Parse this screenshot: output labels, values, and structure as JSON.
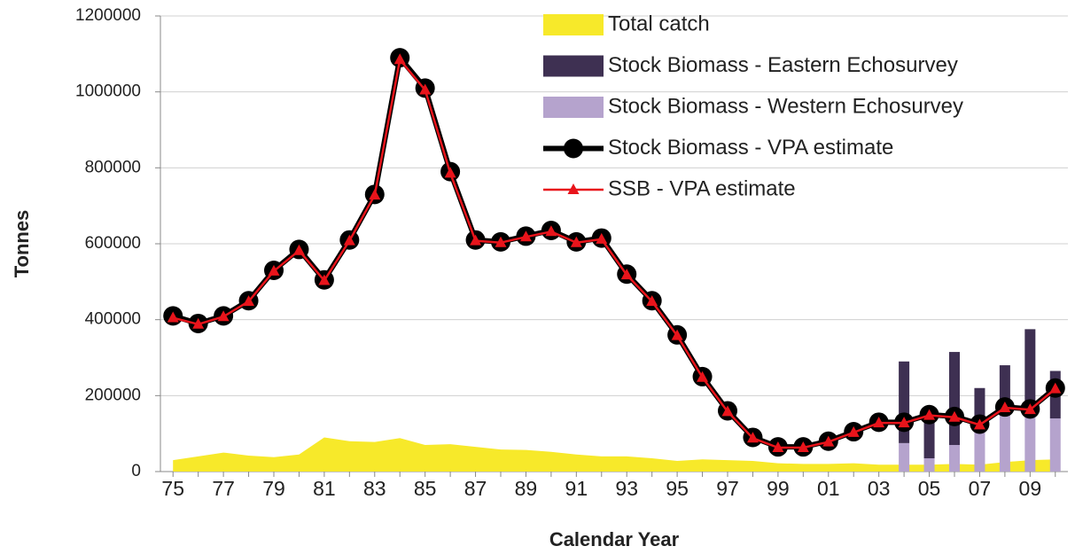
{
  "chart_data": {
    "type": "combo",
    "y_label": "Tonnes",
    "x_label": "Calendar Year",
    "categories": [
      "75",
      null,
      "77",
      null,
      "79",
      null,
      "81",
      null,
      "83",
      null,
      "85",
      null,
      "87",
      null,
      "89",
      null,
      "91",
      null,
      "93",
      null,
      "95",
      null,
      "97",
      null,
      "99",
      null,
      "01",
      null,
      "03",
      null,
      "05",
      null,
      "07",
      null,
      "09",
      null
    ],
    "ylim": [
      0,
      1200000
    ],
    "yticks": [
      0,
      200000,
      400000,
      600000,
      800000,
      1000000,
      1200000
    ],
    "grid": true,
    "legend": "top-right",
    "series": [
      {
        "name": "Total catch",
        "kind": "area",
        "color": "#f7e92a",
        "values": [
          30000,
          40000,
          50000,
          42000,
          38000,
          45000,
          90000,
          80000,
          78000,
          88000,
          70000,
          72000,
          65000,
          58000,
          57000,
          52000,
          45000,
          40000,
          40000,
          35000,
          28000,
          32000,
          30000,
          28000,
          22000,
          20000,
          20000,
          22000,
          18000,
          18000,
          18000,
          20000,
          18000,
          25000,
          30000,
          32000
        ]
      },
      {
        "name": "Stock Biomass - Eastern Echosurvey",
        "kind": "bar",
        "color": "#3e3052",
        "values": [
          null,
          null,
          null,
          null,
          null,
          null,
          null,
          null,
          null,
          null,
          null,
          null,
          null,
          null,
          null,
          null,
          null,
          null,
          null,
          null,
          null,
          null,
          null,
          null,
          null,
          null,
          null,
          null,
          null,
          215000,
          105000,
          245000,
          110000,
          130000,
          225000,
          125000
        ]
      },
      {
        "name": "Stock Biomass - Western Echosurvey",
        "kind": "bar",
        "color": "#b5a3cd",
        "values": [
          null,
          null,
          null,
          null,
          null,
          null,
          null,
          null,
          null,
          null,
          null,
          null,
          null,
          null,
          null,
          null,
          null,
          null,
          null,
          null,
          null,
          null,
          null,
          null,
          null,
          null,
          null,
          null,
          null,
          75000,
          35000,
          70000,
          110000,
          150000,
          150000,
          140000
        ]
      },
      {
        "name": "Stock Biomass - VPA estimate",
        "kind": "line",
        "marker": "circle",
        "color": "#000000",
        "values": [
          410000,
          390000,
          410000,
          450000,
          530000,
          585000,
          505000,
          610000,
          730000,
          1090000,
          1010000,
          790000,
          610000,
          605000,
          620000,
          635000,
          605000,
          615000,
          520000,
          450000,
          360000,
          250000,
          160000,
          90000,
          65000,
          65000,
          80000,
          105000,
          130000,
          130000,
          150000,
          145000,
          125000,
          170000,
          165000,
          220000
        ]
      },
      {
        "name": "SSB - VPA estimate",
        "kind": "line",
        "marker": "triangle",
        "color": "#e8141b",
        "values": [
          405000,
          388000,
          408000,
          448000,
          528000,
          582000,
          503000,
          608000,
          728000,
          1085000,
          1005000,
          786000,
          608000,
          603000,
          618000,
          632000,
          603000,
          612000,
          518000,
          448000,
          358000,
          248000,
          158000,
          88000,
          63000,
          63000,
          78000,
          103000,
          128000,
          128000,
          148000,
          143000,
          123000,
          168000,
          163000,
          218000
        ]
      }
    ]
  }
}
